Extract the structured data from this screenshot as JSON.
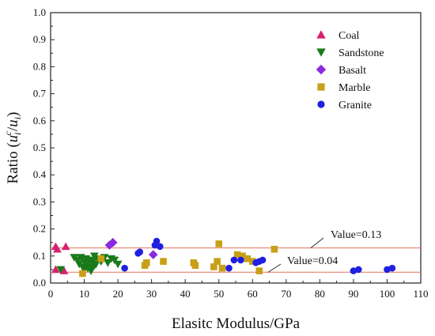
{
  "chart_data": {
    "type": "scatter",
    "xlabel": "Elasitc Modulus/GPa",
    "ylabel_parts": [
      "Ratio (",
      "u",
      "i",
      "c",
      "/",
      "u",
      "i",
      ")"
    ],
    "xlim": [
      0,
      110
    ],
    "ylim": [
      0,
      1.0
    ],
    "xticks": [
      "0",
      "10",
      "20",
      "30",
      "40",
      "50",
      "60",
      "70",
      "80",
      "90",
      "100",
      "110"
    ],
    "yticks": [
      "0.0",
      "0.1",
      "0.2",
      "0.3",
      "0.4",
      "0.5",
      "0.6",
      "0.7",
      "0.8",
      "0.9",
      "1.0"
    ],
    "legend_position": "top-right",
    "grid": false,
    "reference_lines": [
      {
        "y": 0.13,
        "label": "Value=0.13",
        "color": "#e8826e"
      },
      {
        "y": 0.04,
        "label": "Value=0.04",
        "color": "#e8826e"
      }
    ],
    "series": [
      {
        "name": "Coal",
        "marker": "triangle-up",
        "color": "#d6226f",
        "x": [
          1.5,
          2,
          4.5,
          1.5,
          4
        ],
        "y": [
          0.135,
          0.125,
          0.135,
          0.05,
          0.045
        ]
      },
      {
        "name": "Sandstone",
        "marker": "triangle-down",
        "color": "#1a7a1a",
        "x": [
          3,
          7,
          8,
          8.5,
          9,
          9.5,
          10,
          10,
          10.5,
          11,
          11,
          11.5,
          12,
          12,
          12.5,
          13,
          13,
          13.5,
          14,
          15,
          16,
          17,
          18,
          19,
          20
        ],
        "y": [
          0.05,
          0.095,
          0.085,
          0.07,
          0.095,
          0.06,
          0.08,
          0.05,
          0.09,
          0.07,
          0.055,
          0.085,
          0.06,
          0.045,
          0.08,
          0.065,
          0.1,
          0.07,
          0.09,
          0.08,
          0.095,
          0.075,
          0.09,
          0.085,
          0.07
        ]
      },
      {
        "name": "Basalt",
        "marker": "diamond",
        "color": "#8a2be2",
        "x": [
          17.5,
          18.5,
          30.5
        ],
        "y": [
          0.14,
          0.15,
          0.105
        ]
      },
      {
        "name": "Marble",
        "marker": "square",
        "color": "#c8a018",
        "x": [
          9.5,
          15,
          28,
          28.5,
          33.5,
          42.5,
          43,
          48.5,
          49.5,
          50,
          51,
          55.5,
          57,
          58.5,
          60,
          62,
          66.5
        ],
        "y": [
          0.035,
          0.09,
          0.065,
          0.075,
          0.08,
          0.075,
          0.065,
          0.06,
          0.08,
          0.145,
          0.055,
          0.105,
          0.1,
          0.09,
          0.08,
          0.045,
          0.125
        ]
      },
      {
        "name": "Granite",
        "marker": "circle",
        "color": "#1f1fe0",
        "x": [
          22,
          26,
          26.5,
          31,
          31.5,
          32.5,
          53,
          54.5,
          56.5,
          61,
          62,
          63,
          90,
          91.5,
          100,
          101.5
        ],
        "y": [
          0.055,
          0.11,
          0.115,
          0.14,
          0.155,
          0.135,
          0.055,
          0.085,
          0.085,
          0.075,
          0.08,
          0.085,
          0.045,
          0.05,
          0.05,
          0.055
        ]
      }
    ]
  }
}
